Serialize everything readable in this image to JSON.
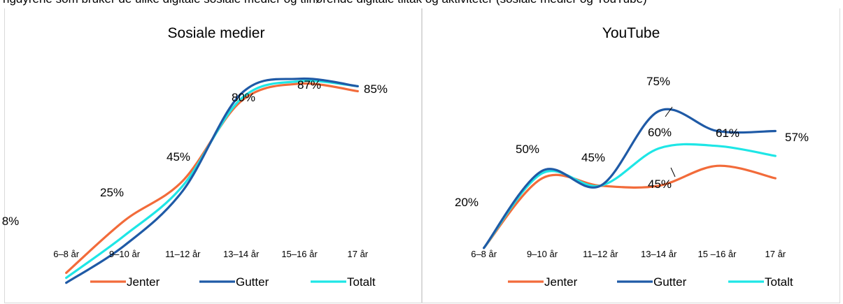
{
  "top_text": "ngdyrene som bruker de ulike digitale sosiale medier og tilhørende digitale tiltak og aktiviteter (sosiale medier og YouTube)",
  "legend_colors": {
    "Jenter": "#f26b3a",
    "Gutter": "#1f5aa6",
    "Totalt": "#1ee6e6"
  },
  "chart_data": [
    {
      "type": "line",
      "title": "Sosiale medier",
      "categories": [
        "6–8 år",
        "9–10 år",
        "11–12 år",
        "13–14 år",
        "15–16 år",
        "17 år"
      ],
      "series": [
        {
          "name": "Jenter",
          "values": [
            10,
            31,
            47,
            79,
            86,
            83
          ]
        },
        {
          "name": "Gutter",
          "values": [
            6,
            21,
            43,
            82,
            88,
            85
          ]
        },
        {
          "name": "Totalt",
          "values": [
            8,
            25,
            45,
            80,
            87,
            85
          ]
        }
      ],
      "data_labels": [
        {
          "category": "6–8 år",
          "text": "8%"
        },
        {
          "category": "9–10 år",
          "text": "25%"
        },
        {
          "category": "11–12 år",
          "text": "45%"
        },
        {
          "category": "13–14 år",
          "text": "80%"
        },
        {
          "category": "15–16 år",
          "text": "87%"
        },
        {
          "category": "17 år",
          "text": "85%"
        }
      ],
      "ylim": [
        0,
        100
      ],
      "grid": false,
      "legend": [
        "Jenter",
        "Gutter",
        "Totalt"
      ],
      "legend_position": "bottom"
    },
    {
      "type": "line",
      "title": "YouTube",
      "categories": [
        "6–8 år",
        "9–10 år",
        "11–12 år",
        "13–14 år",
        "15 –16 år",
        "17 år"
      ],
      "series": [
        {
          "name": "Jenter",
          "values": [
            20,
            48,
            45,
            45,
            53,
            48
          ]
        },
        {
          "name": "Gutter",
          "values": [
            20,
            51,
            45,
            75,
            67,
            67
          ]
        },
        {
          "name": "Totalt",
          "values": [
            20,
            50,
            45,
            60,
            61,
            57
          ]
        }
      ],
      "data_labels": [
        {
          "category": "6–8 år",
          "text": "20%"
        },
        {
          "category": "9–10 år",
          "text": "50%"
        },
        {
          "category": "11–12 år",
          "text": "45%"
        },
        {
          "category": "13–14 år",
          "text": "75%"
        },
        {
          "category": "13–14 år",
          "text": "60%"
        },
        {
          "category": "13–14 år",
          "text": "45%"
        },
        {
          "category": "15 –16 år",
          "text": "61%"
        },
        {
          "category": "17 år",
          "text": "57%"
        }
      ],
      "ylim": [
        0,
        100
      ],
      "grid": false,
      "legend": [
        "Jenter",
        "Gutter",
        "Totalt"
      ],
      "legend_position": "bottom"
    }
  ]
}
